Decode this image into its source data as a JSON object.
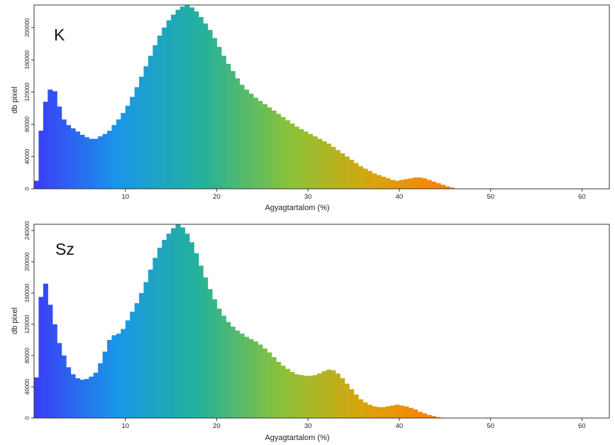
{
  "chart_data": [
    {
      "type": "bar",
      "panel_label": "K",
      "xlabel": "Agyagtartalom (%)",
      "ylabel": "db pixel",
      "xlim": [
        0,
        63
      ],
      "ylim": [
        0,
        228000
      ],
      "xticks": [
        10,
        20,
        30,
        40,
        50,
        60
      ],
      "yticks": [
        0,
        40000,
        80000,
        120000,
        160000,
        200000
      ],
      "color_scale": [
        "#3b3cf6",
        "#1996e8",
        "#25b29a",
        "#8ac23a",
        "#d9a40c",
        "#ff7a05"
      ],
      "bin_width": 0.5,
      "x_start": 0,
      "values": [
        10000,
        72000,
        108000,
        123000,
        121000,
        102000,
        86000,
        79000,
        75000,
        71000,
        67000,
        64000,
        62000,
        62000,
        65000,
        68000,
        72000,
        79000,
        86000,
        94000,
        103000,
        114000,
        126000,
        139000,
        152000,
        165000,
        178000,
        190000,
        200000,
        209000,
        216000,
        222000,
        226000,
        228000,
        225000,
        220000,
        213000,
        205000,
        197000,
        187000,
        176000,
        165000,
        155000,
        146000,
        137000,
        129000,
        123000,
        118000,
        113000,
        109000,
        105000,
        101000,
        97000,
        93000,
        89000,
        85000,
        81000,
        77000,
        74000,
        71000,
        68000,
        65000,
        62000,
        59000,
        56000,
        52000,
        48000,
        44000,
        40000,
        36000,
        32000,
        28000,
        25000,
        22000,
        19000,
        17000,
        15000,
        13000,
        11000,
        10000,
        11000,
        12000,
        13000,
        14000,
        14000,
        13000,
        11000,
        9000,
        7000,
        5000,
        3000,
        1500,
        500
      ]
    },
    {
      "type": "bar",
      "panel_label": "Sz",
      "xlabel": "Agyagtartalom (%)",
      "ylabel": "db pixel",
      "xlim": [
        0,
        63
      ],
      "ylim": [
        0,
        248000
      ],
      "xticks": [
        10,
        20,
        30,
        40,
        50,
        60
      ],
      "yticks": [
        0,
        40000,
        80000,
        120000,
        160000,
        200000,
        240000
      ],
      "color_scale": [
        "#3b3cf6",
        "#1996e8",
        "#25b29a",
        "#8ac23a",
        "#d9a40c",
        "#ff7a05"
      ],
      "bin_width": 0.5,
      "x_start": 0,
      "values": [
        52000,
        155000,
        172000,
        145000,
        120000,
        96000,
        80000,
        65000,
        56000,
        51000,
        49000,
        50000,
        53000,
        58000,
        70000,
        85000,
        100000,
        106000,
        108000,
        114000,
        125000,
        136000,
        147000,
        160000,
        174000,
        190000,
        205000,
        218000,
        228000,
        236000,
        243000,
        248000,
        244000,
        236000,
        225000,
        211000,
        195000,
        180000,
        165000,
        152000,
        140000,
        131000,
        123000,
        117000,
        112000,
        108000,
        104000,
        101000,
        98000,
        94000,
        89000,
        84000,
        78000,
        72000,
        67000,
        63000,
        59000,
        56000,
        55000,
        54000,
        54000,
        55000,
        57000,
        60000,
        62000,
        61000,
        57000,
        51000,
        44000,
        37000,
        30000,
        24000,
        20000,
        17000,
        15000,
        14000,
        14000,
        15000,
        16000,
        17000,
        16000,
        15000,
        13000,
        11000,
        8000,
        6000,
        4000,
        2500,
        1200,
        500
      ]
    }
  ]
}
